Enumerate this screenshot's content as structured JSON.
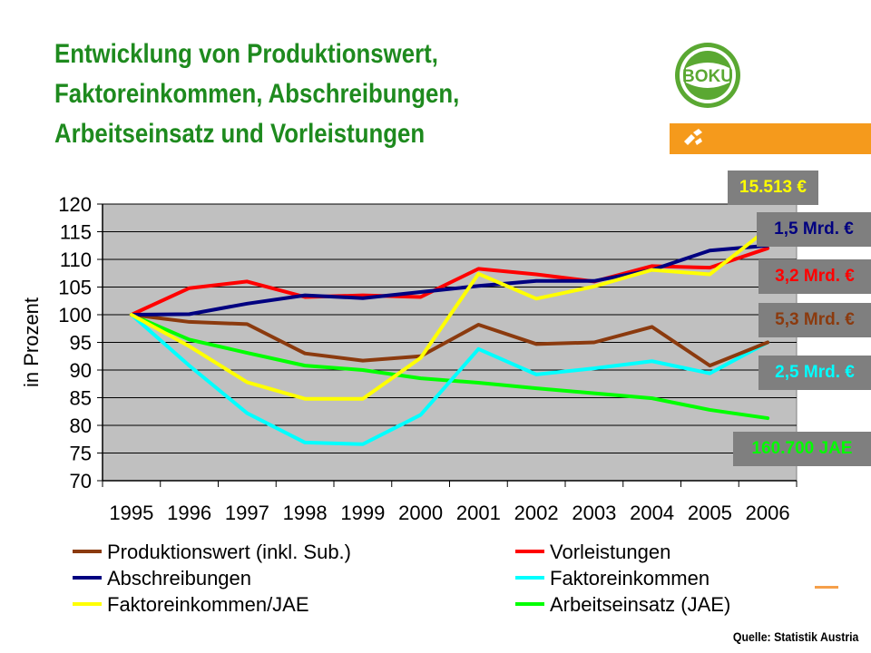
{
  "title_lines": [
    "Entwicklung von Produktionswert,",
    "Faktoreinkommen, Abschreibungen,",
    "Arbeitseinsatz und Vorleistungen"
  ],
  "logo_text": "BOKU",
  "source": "Quelle: Statistik Austria",
  "end_labels": [
    {
      "text": "15.513 €",
      "color": "#ffff00"
    },
    {
      "text": "1,5 Mrd. €",
      "color": "#000080"
    },
    {
      "text": "3,2 Mrd. €",
      "color": "#ff0000"
    },
    {
      "text": "5,3 Mrd. €",
      "color": "#8b3a0e"
    },
    {
      "text": "2,5 Mrd. €",
      "color": "#00ffff"
    },
    {
      "text": "160.700 JAE",
      "color": "#00ff00"
    }
  ],
  "chart_data": {
    "type": "line",
    "ylabel": "in Prozent",
    "xlabel": "",
    "ylim": [
      70,
      120
    ],
    "y_ticks": [
      70,
      75,
      80,
      85,
      90,
      95,
      100,
      105,
      110,
      115,
      120
    ],
    "grid": true,
    "legend_position": "bottom",
    "categories": [
      "1995",
      "1996",
      "1997",
      "1998",
      "1999",
      "2000",
      "2001",
      "2002",
      "2003",
      "2004",
      "2005",
      "2006"
    ],
    "plot_background": "#c0c0c0",
    "series": [
      {
        "name": "Produktionswert (inkl. Sub.)",
        "color": "#8b3a0e",
        "values": [
          100,
          98.7,
          98.3,
          93,
          91.7,
          92.5,
          98.2,
          94.7,
          95,
          97.8,
          90.8,
          95
        ]
      },
      {
        "name": "Vorleistungen",
        "color": "#ff0000",
        "values": [
          100,
          104.8,
          106,
          103.2,
          103.5,
          103.2,
          108.3,
          107.3,
          106,
          108.8,
          108.5,
          112
        ]
      },
      {
        "name": "Abschreibungen",
        "color": "#000080",
        "values": [
          100,
          100.1,
          102,
          103.5,
          103,
          104.1,
          105.2,
          106.1,
          106.1,
          108.1,
          111.6,
          112.5
        ]
      },
      {
        "name": "Faktoreinkommen",
        "color": "#00ffff",
        "values": [
          100,
          90.8,
          82.2,
          76.9,
          76.6,
          81.9,
          93.8,
          89.2,
          90.3,
          91.6,
          89.4,
          95
        ]
      },
      {
        "name": "Faktoreinkommen/JAE",
        "color": "#ffff00",
        "values": [
          100,
          94.3,
          87.8,
          84.8,
          84.8,
          92.2,
          107.4,
          102.9,
          105.1,
          108.1,
          107.3,
          115.5
        ]
      },
      {
        "name": "Arbeitseinsatz (JAE)",
        "color": "#00ff00",
        "values": [
          100,
          95.5,
          93.1,
          90.8,
          90,
          88.5,
          87.7,
          86.7,
          85.8,
          84.9,
          82.8,
          81.3
        ]
      }
    ]
  }
}
